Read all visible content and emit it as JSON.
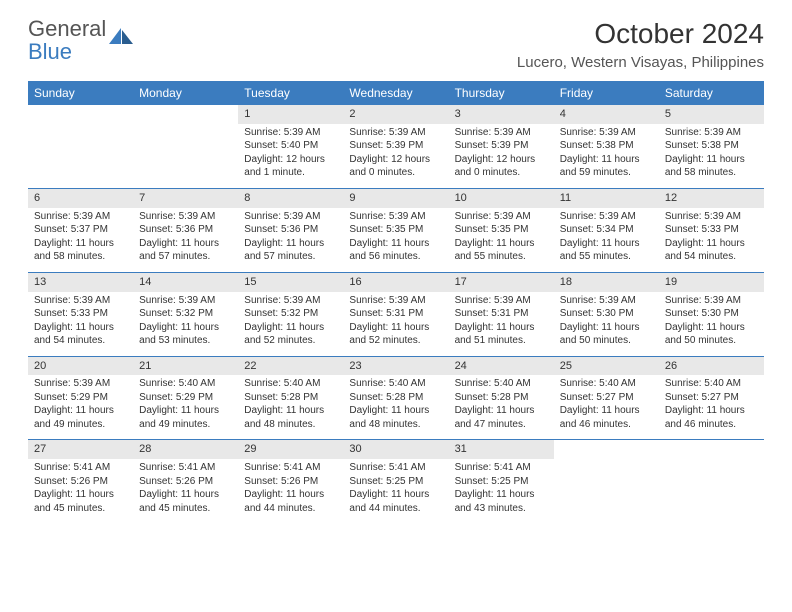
{
  "logo": {
    "gray": "General",
    "blue": "Blue"
  },
  "title": "October 2024",
  "location": "Lucero, Western Visayas, Philippines",
  "colors": {
    "accent": "#3b7cbf",
    "stripe": "#e8e8e8",
    "text": "#333333"
  },
  "weekdays": [
    "Sunday",
    "Monday",
    "Tuesday",
    "Wednesday",
    "Thursday",
    "Friday",
    "Saturday"
  ],
  "weeks": [
    [
      {
        "empty": true
      },
      {
        "empty": true
      },
      {
        "day": "1",
        "sunrise": "Sunrise: 5:39 AM",
        "sunset": "Sunset: 5:40 PM",
        "daylight1": "Daylight: 12 hours",
        "daylight2": "and 1 minute."
      },
      {
        "day": "2",
        "sunrise": "Sunrise: 5:39 AM",
        "sunset": "Sunset: 5:39 PM",
        "daylight1": "Daylight: 12 hours",
        "daylight2": "and 0 minutes."
      },
      {
        "day": "3",
        "sunrise": "Sunrise: 5:39 AM",
        "sunset": "Sunset: 5:39 PM",
        "daylight1": "Daylight: 12 hours",
        "daylight2": "and 0 minutes."
      },
      {
        "day": "4",
        "sunrise": "Sunrise: 5:39 AM",
        "sunset": "Sunset: 5:38 PM",
        "daylight1": "Daylight: 11 hours",
        "daylight2": "and 59 minutes."
      },
      {
        "day": "5",
        "sunrise": "Sunrise: 5:39 AM",
        "sunset": "Sunset: 5:38 PM",
        "daylight1": "Daylight: 11 hours",
        "daylight2": "and 58 minutes."
      }
    ],
    [
      {
        "day": "6",
        "sunrise": "Sunrise: 5:39 AM",
        "sunset": "Sunset: 5:37 PM",
        "daylight1": "Daylight: 11 hours",
        "daylight2": "and 58 minutes."
      },
      {
        "day": "7",
        "sunrise": "Sunrise: 5:39 AM",
        "sunset": "Sunset: 5:36 PM",
        "daylight1": "Daylight: 11 hours",
        "daylight2": "and 57 minutes."
      },
      {
        "day": "8",
        "sunrise": "Sunrise: 5:39 AM",
        "sunset": "Sunset: 5:36 PM",
        "daylight1": "Daylight: 11 hours",
        "daylight2": "and 57 minutes."
      },
      {
        "day": "9",
        "sunrise": "Sunrise: 5:39 AM",
        "sunset": "Sunset: 5:35 PM",
        "daylight1": "Daylight: 11 hours",
        "daylight2": "and 56 minutes."
      },
      {
        "day": "10",
        "sunrise": "Sunrise: 5:39 AM",
        "sunset": "Sunset: 5:35 PM",
        "daylight1": "Daylight: 11 hours",
        "daylight2": "and 55 minutes."
      },
      {
        "day": "11",
        "sunrise": "Sunrise: 5:39 AM",
        "sunset": "Sunset: 5:34 PM",
        "daylight1": "Daylight: 11 hours",
        "daylight2": "and 55 minutes."
      },
      {
        "day": "12",
        "sunrise": "Sunrise: 5:39 AM",
        "sunset": "Sunset: 5:33 PM",
        "daylight1": "Daylight: 11 hours",
        "daylight2": "and 54 minutes."
      }
    ],
    [
      {
        "day": "13",
        "sunrise": "Sunrise: 5:39 AM",
        "sunset": "Sunset: 5:33 PM",
        "daylight1": "Daylight: 11 hours",
        "daylight2": "and 54 minutes."
      },
      {
        "day": "14",
        "sunrise": "Sunrise: 5:39 AM",
        "sunset": "Sunset: 5:32 PM",
        "daylight1": "Daylight: 11 hours",
        "daylight2": "and 53 minutes."
      },
      {
        "day": "15",
        "sunrise": "Sunrise: 5:39 AM",
        "sunset": "Sunset: 5:32 PM",
        "daylight1": "Daylight: 11 hours",
        "daylight2": "and 52 minutes."
      },
      {
        "day": "16",
        "sunrise": "Sunrise: 5:39 AM",
        "sunset": "Sunset: 5:31 PM",
        "daylight1": "Daylight: 11 hours",
        "daylight2": "and 52 minutes."
      },
      {
        "day": "17",
        "sunrise": "Sunrise: 5:39 AM",
        "sunset": "Sunset: 5:31 PM",
        "daylight1": "Daylight: 11 hours",
        "daylight2": "and 51 minutes."
      },
      {
        "day": "18",
        "sunrise": "Sunrise: 5:39 AM",
        "sunset": "Sunset: 5:30 PM",
        "daylight1": "Daylight: 11 hours",
        "daylight2": "and 50 minutes."
      },
      {
        "day": "19",
        "sunrise": "Sunrise: 5:39 AM",
        "sunset": "Sunset: 5:30 PM",
        "daylight1": "Daylight: 11 hours",
        "daylight2": "and 50 minutes."
      }
    ],
    [
      {
        "day": "20",
        "sunrise": "Sunrise: 5:39 AM",
        "sunset": "Sunset: 5:29 PM",
        "daylight1": "Daylight: 11 hours",
        "daylight2": "and 49 minutes."
      },
      {
        "day": "21",
        "sunrise": "Sunrise: 5:40 AM",
        "sunset": "Sunset: 5:29 PM",
        "daylight1": "Daylight: 11 hours",
        "daylight2": "and 49 minutes."
      },
      {
        "day": "22",
        "sunrise": "Sunrise: 5:40 AM",
        "sunset": "Sunset: 5:28 PM",
        "daylight1": "Daylight: 11 hours",
        "daylight2": "and 48 minutes."
      },
      {
        "day": "23",
        "sunrise": "Sunrise: 5:40 AM",
        "sunset": "Sunset: 5:28 PM",
        "daylight1": "Daylight: 11 hours",
        "daylight2": "and 48 minutes."
      },
      {
        "day": "24",
        "sunrise": "Sunrise: 5:40 AM",
        "sunset": "Sunset: 5:28 PM",
        "daylight1": "Daylight: 11 hours",
        "daylight2": "and 47 minutes."
      },
      {
        "day": "25",
        "sunrise": "Sunrise: 5:40 AM",
        "sunset": "Sunset: 5:27 PM",
        "daylight1": "Daylight: 11 hours",
        "daylight2": "and 46 minutes."
      },
      {
        "day": "26",
        "sunrise": "Sunrise: 5:40 AM",
        "sunset": "Sunset: 5:27 PM",
        "daylight1": "Daylight: 11 hours",
        "daylight2": "and 46 minutes."
      }
    ],
    [
      {
        "day": "27",
        "sunrise": "Sunrise: 5:41 AM",
        "sunset": "Sunset: 5:26 PM",
        "daylight1": "Daylight: 11 hours",
        "daylight2": "and 45 minutes."
      },
      {
        "day": "28",
        "sunrise": "Sunrise: 5:41 AM",
        "sunset": "Sunset: 5:26 PM",
        "daylight1": "Daylight: 11 hours",
        "daylight2": "and 45 minutes."
      },
      {
        "day": "29",
        "sunrise": "Sunrise: 5:41 AM",
        "sunset": "Sunset: 5:26 PM",
        "daylight1": "Daylight: 11 hours",
        "daylight2": "and 44 minutes."
      },
      {
        "day": "30",
        "sunrise": "Sunrise: 5:41 AM",
        "sunset": "Sunset: 5:25 PM",
        "daylight1": "Daylight: 11 hours",
        "daylight2": "and 44 minutes."
      },
      {
        "day": "31",
        "sunrise": "Sunrise: 5:41 AM",
        "sunset": "Sunset: 5:25 PM",
        "daylight1": "Daylight: 11 hours",
        "daylight2": "and 43 minutes."
      },
      {
        "empty": true
      },
      {
        "empty": true
      }
    ]
  ]
}
